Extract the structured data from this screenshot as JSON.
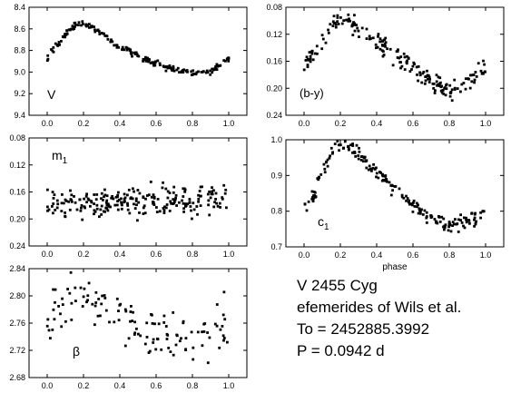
{
  "chart_data": [
    {
      "type": "scatter",
      "label": "V",
      "xlim": [
        -0.1,
        1.1
      ],
      "ylim": [
        9.4,
        8.4
      ],
      "y_inverted": true,
      "xticks": [
        0.0,
        0.2,
        0.4,
        0.6,
        0.8,
        1.0
      ],
      "xtick_labels": [
        "0.0",
        "0.2",
        "0.4",
        "0.6",
        "0.8",
        "1.0"
      ],
      "yticks": [
        8.4,
        8.6,
        8.8,
        9.0,
        9.2,
        9.4
      ],
      "ytick_labels": [
        "8.4",
        "8.6",
        "8.8",
        "9.0",
        "9.2",
        "9.4"
      ],
      "curve": {
        "x": [
          0.0,
          0.05,
          0.1,
          0.15,
          0.2,
          0.25,
          0.3,
          0.35,
          0.4,
          0.45,
          0.5,
          0.55,
          0.6,
          0.65,
          0.7,
          0.75,
          0.8,
          0.85,
          0.9,
          0.95,
          1.0
        ],
        "y": [
          8.87,
          8.76,
          8.65,
          8.57,
          8.55,
          8.58,
          8.64,
          8.7,
          8.76,
          8.81,
          8.85,
          8.89,
          8.92,
          8.95,
          8.98,
          9.0,
          9.01,
          9.01,
          8.99,
          8.94,
          8.87
        ]
      },
      "n_points": 200,
      "scatter_amplitude": 0.015
    },
    {
      "type": "scatter",
      "label": "(b-y)",
      "xlim": [
        -0.1,
        1.1
      ],
      "ylim": [
        0.24,
        0.08
      ],
      "y_inverted": true,
      "xticks": [
        0.0,
        0.2,
        0.4,
        0.6,
        0.8,
        1.0
      ],
      "xtick_labels": [
        "0.0",
        "0.2",
        "0.4",
        "0.6",
        "0.8",
        "1.0"
      ],
      "yticks": [
        0.08,
        0.12,
        0.16,
        0.2,
        0.24
      ],
      "ytick_labels": [
        "0.08",
        "0.12",
        "0.16",
        "0.20",
        "0.24"
      ],
      "curve": {
        "x": [
          0.0,
          0.05,
          0.1,
          0.15,
          0.2,
          0.25,
          0.3,
          0.35,
          0.4,
          0.45,
          0.5,
          0.55,
          0.6,
          0.65,
          0.7,
          0.75,
          0.8,
          0.85,
          0.9,
          0.95,
          1.0
        ],
        "y": [
          0.17,
          0.15,
          0.13,
          0.11,
          0.095,
          0.1,
          0.11,
          0.12,
          0.13,
          0.14,
          0.15,
          0.16,
          0.17,
          0.18,
          0.19,
          0.197,
          0.205,
          0.2,
          0.19,
          0.18,
          0.165
        ]
      },
      "n_points": 200,
      "scatter_amplitude": 0.007
    },
    {
      "type": "scatter",
      "label": "m1",
      "xlim": [
        -0.1,
        1.1
      ],
      "ylim": [
        0.24,
        0.08
      ],
      "y_inverted": true,
      "xticks": [
        0.0,
        0.2,
        0.4,
        0.6,
        0.8,
        1.0
      ],
      "xtick_labels": [
        "0.0",
        "0.2",
        "0.4",
        "0.6",
        "0.8",
        "1.0"
      ],
      "yticks": [
        0.08,
        0.12,
        0.16,
        0.2,
        0.24
      ],
      "ytick_labels": [
        "0.08",
        "0.12",
        "0.16",
        "0.20",
        "0.24"
      ],
      "curve": {
        "x": [
          0.0,
          0.5,
          1.0
        ],
        "y": [
          0.178,
          0.173,
          0.172
        ]
      },
      "n_points": 230,
      "scatter_amplitude": 0.011
    },
    {
      "type": "scatter",
      "label": "c1",
      "xlabel": "phase",
      "xlim": [
        -0.1,
        1.1
      ],
      "ylim": [
        0.7,
        1.0
      ],
      "y_inverted": false,
      "xticks": [
        0.0,
        0.2,
        0.4,
        0.6,
        0.8,
        1.0
      ],
      "xtick_labels": [
        "0.0",
        "0.2",
        "0.4",
        "0.6",
        "0.8",
        "1.0"
      ],
      "yticks": [
        0.7,
        0.8,
        0.9,
        1.0
      ],
      "ytick_labels": [
        "0.7",
        "0.8",
        "0.9",
        "1.0"
      ],
      "curve": {
        "x": [
          0.0,
          0.05,
          0.1,
          0.15,
          0.2,
          0.25,
          0.3,
          0.35,
          0.4,
          0.45,
          0.5,
          0.55,
          0.6,
          0.65,
          0.7,
          0.75,
          0.8,
          0.85,
          0.9,
          0.95,
          1.0
        ],
        "y": [
          0.81,
          0.84,
          0.9,
          0.96,
          0.985,
          0.98,
          0.965,
          0.94,
          0.91,
          0.885,
          0.86,
          0.84,
          0.82,
          0.8,
          0.78,
          0.765,
          0.758,
          0.76,
          0.77,
          0.78,
          0.79
        ]
      },
      "n_points": 200,
      "scatter_amplitude": 0.01
    },
    {
      "type": "scatter",
      "label": "β",
      "xlim": [
        -0.1,
        1.1
      ],
      "ylim": [
        2.68,
        2.84
      ],
      "y_inverted": false,
      "xticks": [
        0.0,
        0.2,
        0.4,
        0.6,
        0.8,
        1.0
      ],
      "xtick_labels": [
        "0.0",
        "0.2",
        "0.4",
        "0.6",
        "0.8",
        "1.0"
      ],
      "yticks": [
        2.68,
        2.72,
        2.76,
        2.8,
        2.84
      ],
      "ytick_labels": [
        "2.68",
        "2.72",
        "2.76",
        "2.80",
        "2.84"
      ],
      "curve": {
        "x": [
          0.0,
          0.05,
          0.1,
          0.15,
          0.2,
          0.25,
          0.3,
          0.35,
          0.4,
          0.45,
          0.5,
          0.55,
          0.6,
          0.65,
          0.7,
          0.75,
          0.8,
          0.85,
          0.9,
          0.95,
          1.0
        ],
        "y": [
          2.77,
          2.785,
          2.795,
          2.8,
          2.805,
          2.8,
          2.795,
          2.785,
          2.775,
          2.765,
          2.757,
          2.75,
          2.745,
          2.74,
          2.738,
          2.737,
          2.74,
          2.745,
          2.75,
          2.755,
          2.76
        ]
      },
      "n_points": 130,
      "scatter_amplitude": 0.02
    }
  ],
  "info": {
    "star": "V 2455 Cyg",
    "ephemerides": "efemerides of  Wils et al.",
    "epoch": "To = 2452885.3992",
    "period": "P = 0.0942 d"
  }
}
